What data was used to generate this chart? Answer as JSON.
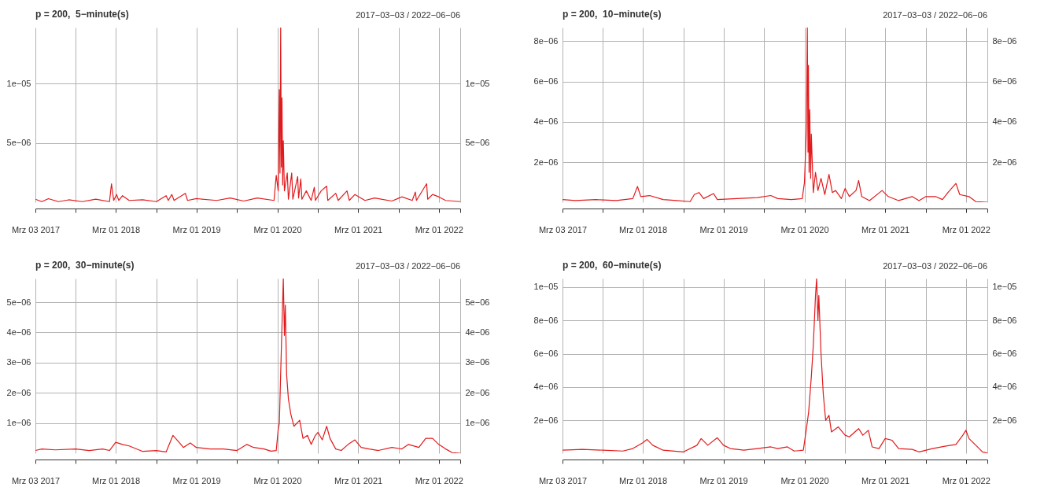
{
  "chart_data": [
    {
      "type": "line",
      "title": "p = 200,  5−minute(s)",
      "subtitle": "2017−03−03 / 2022−06−06",
      "color": "#e31a1c",
      "grid": true,
      "x": [
        "2017-03-03",
        "2017-04-01",
        "2017-05-01",
        "2017-06-15",
        "2017-08-01",
        "2017-10-01",
        "2017-12-01",
        "2018-02-01",
        "2018-02-10",
        "2018-02-20",
        "2018-03-05",
        "2018-03-15",
        "2018-04-01",
        "2018-05-01",
        "2018-07-01",
        "2018-09-01",
        "2018-10-15",
        "2018-10-25",
        "2018-11-10",
        "2018-11-20",
        "2019-01-10",
        "2019-01-20",
        "2019-03-01",
        "2019-06-01",
        "2019-08-01",
        "2019-10-01",
        "2019-12-01",
        "2020-02-15",
        "2020-02-25",
        "2020-03-05",
        "2020-03-10",
        "2020-03-13",
        "2020-03-16",
        "2020-03-19",
        "2020-03-22",
        "2020-03-25",
        "2020-03-28",
        "2020-04-02",
        "2020-04-15",
        "2020-04-20",
        "2020-05-05",
        "2020-05-10",
        "2020-06-01",
        "2020-06-05",
        "2020-06-15",
        "2020-06-20",
        "2020-07-10",
        "2020-08-01",
        "2020-08-15",
        "2020-08-20",
        "2020-09-15",
        "2020-10-10",
        "2020-10-15",
        "2020-11-20",
        "2020-12-01",
        "2021-01-10",
        "2021-01-20",
        "2021-02-15",
        "2021-04-01",
        "2021-05-15",
        "2021-08-01",
        "2021-09-15",
        "2021-11-01",
        "2021-11-15",
        "2021-11-20",
        "2022-01-05",
        "2022-01-10",
        "2022-02-01",
        "2022-03-01",
        "2022-04-01",
        "2022-06-06"
      ],
      "values": [
        3e-07,
        1e-07,
        3.5e-07,
        1e-07,
        2.5e-07,
        1e-07,
        3e-07,
        1e-07,
        1.6e-06,
        2e-07,
        7e-07,
        2e-07,
        6e-07,
        2e-07,
        2.5e-07,
        1e-07,
        6e-07,
        2e-07,
        7e-07,
        2e-07,
        8e-07,
        2e-07,
        3.5e-07,
        2e-07,
        4e-07,
        1.5e-07,
        4e-07,
        2e-07,
        2.3e-06,
        1e-06,
        9.5e-06,
        2.5e-06,
        1.47e-05,
        3e-06,
        8.8e-06,
        1.5e-06,
        5.2e-06,
        1e-06,
        2.5e-06,
        3e-07,
        2.5e-06,
        3e-07,
        2.2e-06,
        4e-07,
        2e-06,
        3e-07,
        1e-06,
        2e-07,
        1.3e-06,
        2e-07,
        1e-06,
        1.4e-06,
        2e-07,
        8e-07,
        2e-07,
        1e-06,
        2e-07,
        7e-07,
        2e-07,
        4e-07,
        1.5e-07,
        5e-07,
        2e-07,
        9e-07,
        2e-07,
        1.6e-06,
        3e-07,
        7e-07,
        5e-07,
        2e-07,
        1e-07
      ],
      "xlim": [
        "2017-03-03",
        "2022-06-06"
      ],
      "xticks": [
        {
          "value": "2017-03-03",
          "label": "Mrz 03 2017"
        },
        {
          "value": "2017-09-01",
          "label": null
        },
        {
          "value": "2018-03-01",
          "label": "Mrz 01 2018"
        },
        {
          "value": "2018-09-01",
          "label": null
        },
        {
          "value": "2019-03-01",
          "label": "Mrz 01 2019"
        },
        {
          "value": "2019-09-01",
          "label": null
        },
        {
          "value": "2020-03-01",
          "label": "Mrz 01 2020"
        },
        {
          "value": "2020-09-01",
          "label": null
        },
        {
          "value": "2021-03-01",
          "label": "Mrz 01 2021"
        },
        {
          "value": "2021-09-01",
          "label": null
        },
        {
          "value": "2022-03-01",
          "label": "Mrz 01 2022"
        },
        {
          "value": "2022-06-06",
          "label": null
        }
      ],
      "ylim": [
        5e-08,
        1.47e-05
      ],
      "yticks": [
        {
          "value": 5e-06,
          "label": "5e−06"
        },
        {
          "value": 1e-05,
          "label": "1e−05"
        }
      ],
      "y2lim": [
        5e-08,
        1.47e-05
      ],
      "y2ticks": [
        {
          "value": 5e-06,
          "label": "5e−06"
        },
        {
          "value": 1e-05,
          "label": "1e−05"
        }
      ]
    },
    {
      "type": "line",
      "title": "p = 200,  10−minute(s)",
      "subtitle": "2017−03−03 / 2022−06−06",
      "color": "#e31a1c",
      "grid": true,
      "x": [
        "2017-03-03",
        "2017-05-01",
        "2017-08-01",
        "2017-11-01",
        "2018-01-15",
        "2018-02-05",
        "2018-02-20",
        "2018-04-01",
        "2018-06-01",
        "2018-08-01",
        "2018-10-01",
        "2018-10-20",
        "2018-11-10",
        "2018-12-01",
        "2019-01-15",
        "2019-02-01",
        "2019-05-01",
        "2019-08-01",
        "2019-10-01",
        "2019-11-01",
        "2020-01-01",
        "2020-02-20",
        "2020-03-01",
        "2020-03-10",
        "2020-03-14",
        "2020-03-17",
        "2020-03-19",
        "2020-03-22",
        "2020-03-25",
        "2020-03-29",
        "2020-04-01",
        "2020-04-10",
        "2020-04-20",
        "2020-05-01",
        "2020-05-15",
        "2020-06-01",
        "2020-06-20",
        "2020-07-05",
        "2020-07-20",
        "2020-08-15",
        "2020-09-01",
        "2020-09-20",
        "2020-10-20",
        "2020-11-01",
        "2020-11-15",
        "2020-12-20",
        "2021-02-15",
        "2021-03-15",
        "2021-05-01",
        "2021-07-01",
        "2021-08-01",
        "2021-09-01",
        "2021-10-15",
        "2021-11-15",
        "2021-12-10",
        "2022-01-15",
        "2022-02-01",
        "2022-03-15",
        "2022-04-15",
        "2022-06-06"
      ],
      "values": [
        1.5e-07,
        1e-07,
        1.5e-07,
        1e-07,
        2e-07,
        8e-07,
        3e-07,
        3.5e-07,
        1.5e-07,
        1e-07,
        5e-08,
        4e-07,
        5e-07,
        2e-07,
        4.5e-07,
        1.5e-07,
        2e-07,
        2.5e-07,
        3.5e-07,
        2e-07,
        1.5e-07,
        2e-07,
        1e-06,
        3.7e-06,
        8.67e-06,
        2.5e-06,
        6.8e-06,
        1.5e-06,
        4.6e-06,
        1.2e-06,
        3.4e-06,
        5e-07,
        1.5e-06,
        6e-07,
        1.2e-06,
        4e-07,
        1.4e-06,
        5e-07,
        6e-07,
        2e-07,
        7e-07,
        3e-07,
        6e-07,
        1.1e-06,
        3e-07,
        1e-07,
        6e-07,
        3e-07,
        1e-07,
        3e-07,
        1e-07,
        3e-07,
        3e-07,
        1.5e-07,
        5e-07,
        9.5e-07,
        4e-07,
        3e-07,
        5e-08,
        2e-08
      ],
      "xlim": [
        "2017-03-03",
        "2022-06-06"
      ],
      "xticks": [
        {
          "value": "2017-03-03",
          "label": "Mrz 03 2017"
        },
        {
          "value": "2017-09-01",
          "label": null
        },
        {
          "value": "2018-03-01",
          "label": "Mrz 01 2018"
        },
        {
          "value": "2018-09-01",
          "label": null
        },
        {
          "value": "2019-03-01",
          "label": "Mrz 01 2019"
        },
        {
          "value": "2019-09-01",
          "label": null
        },
        {
          "value": "2020-03-01",
          "label": "Mrz 01 2020"
        },
        {
          "value": "2020-09-01",
          "label": null
        },
        {
          "value": "2021-03-01",
          "label": "Mrz 01 2021"
        },
        {
          "value": "2021-09-01",
          "label": null
        },
        {
          "value": "2022-03-01",
          "label": "Mrz 01 2022"
        },
        {
          "value": "2022-06-06",
          "label": null
        }
      ],
      "ylim": [
        2e-08,
        8.67e-06
      ],
      "yticks": [
        {
          "value": 2e-06,
          "label": "2e−06"
        },
        {
          "value": 4e-06,
          "label": "4e−06"
        },
        {
          "value": 6e-06,
          "label": "6e−06"
        },
        {
          "value": 8e-06,
          "label": "8e−06"
        }
      ],
      "y2lim": [
        2e-08,
        8.67e-06
      ],
      "y2ticks": [
        {
          "value": 2e-06,
          "label": "2e−06"
        },
        {
          "value": 4e-06,
          "label": "4e−06"
        },
        {
          "value": 6e-06,
          "label": "6e−06"
        },
        {
          "value": 8e-06,
          "label": "8e−06"
        }
      ]
    },
    {
      "type": "line",
      "title": "p = 200,  30−minute(s)",
      "subtitle": "2017−03−03 / 2022−06−06",
      "color": "#e31a1c",
      "grid": true,
      "x": [
        "2017-03-03",
        "2017-04-01",
        "2017-06-01",
        "2017-09-01",
        "2017-11-01",
        "2018-01-01",
        "2018-02-01",
        "2018-03-01",
        "2018-04-01",
        "2018-05-01",
        "2018-07-01",
        "2018-09-01",
        "2018-10-15",
        "2018-11-15",
        "2018-12-15",
        "2019-01-01",
        "2019-02-01",
        "2019-03-01",
        "2019-05-01",
        "2019-07-01",
        "2019-09-01",
        "2019-10-15",
        "2019-11-15",
        "2020-01-01",
        "2020-02-01",
        "2020-02-25",
        "2020-03-05",
        "2020-03-10",
        "2020-03-20",
        "2020-03-28",
        "2020-04-02",
        "2020-04-06",
        "2020-04-12",
        "2020-04-20",
        "2020-05-01",
        "2020-05-15",
        "2020-06-10",
        "2020-06-25",
        "2020-07-15",
        "2020-08-01",
        "2020-08-20",
        "2020-09-01",
        "2020-09-20",
        "2020-10-10",
        "2020-10-25",
        "2020-11-20",
        "2020-12-15",
        "2021-01-15",
        "2021-02-15",
        "2021-03-15",
        "2021-04-20",
        "2021-06-01",
        "2021-08-01",
        "2021-09-15",
        "2021-10-15",
        "2021-12-01",
        "2022-01-01",
        "2022-02-01",
        "2022-03-01",
        "2022-04-01",
        "2022-05-01",
        "2022-06-06"
      ],
      "values": [
        1e-07,
        1.5e-07,
        1.2e-07,
        1.5e-07,
        1e-07,
        1.5e-07,
        1e-07,
        3.7e-07,
        3e-07,
        2.5e-07,
        7e-08,
        1e-07,
        5e-08,
        6e-07,
        3.5e-07,
        2e-07,
        3.5e-07,
        2e-07,
        1.5e-07,
        1.5e-07,
        1e-07,
        3e-07,
        2e-07,
        1.5e-07,
        8e-08,
        1e-07,
        8e-07,
        1e-06,
        3.7e-06,
        5.78e-06,
        3.9e-06,
        4.9e-06,
        2.6e-06,
        1.8e-06,
        1.3e-06,
        9e-07,
        1.1e-06,
        5e-07,
        6e-07,
        3e-07,
        6e-07,
        7e-07,
        4.5e-07,
        9e-07,
        5e-07,
        1.5e-07,
        1e-07,
        3e-07,
        4.5e-07,
        2e-07,
        1.5e-07,
        1e-07,
        2e-07,
        1.5e-07,
        3e-07,
        2e-07,
        5e-07,
        5e-07,
        3e-07,
        1.5e-07,
        3e-08,
        1e-08
      ],
      "xlim": [
        "2017-03-03",
        "2022-06-06"
      ],
      "xticks": [
        {
          "value": "2017-03-03",
          "label": "Mrz 03 2017"
        },
        {
          "value": "2017-09-01",
          "label": null
        },
        {
          "value": "2018-03-01",
          "label": "Mrz 01 2018"
        },
        {
          "value": "2018-09-01",
          "label": null
        },
        {
          "value": "2019-03-01",
          "label": "Mrz 01 2019"
        },
        {
          "value": "2019-09-01",
          "label": null
        },
        {
          "value": "2020-03-01",
          "label": "Mrz 01 2020"
        },
        {
          "value": "2020-09-01",
          "label": null
        },
        {
          "value": "2021-03-01",
          "label": "Mrz 01 2021"
        },
        {
          "value": "2021-09-01",
          "label": null
        },
        {
          "value": "2022-03-01",
          "label": "Mrz 01 2022"
        },
        {
          "value": "2022-06-06",
          "label": null
        }
      ],
      "ylim": [
        1e-08,
        5.78e-06
      ],
      "yticks": [
        {
          "value": 1e-06,
          "label": "1e−06"
        },
        {
          "value": 2e-06,
          "label": "2e−06"
        },
        {
          "value": 3e-06,
          "label": "3e−06"
        },
        {
          "value": 4e-06,
          "label": "4e−06"
        },
        {
          "value": 5e-06,
          "label": "5e−06"
        }
      ],
      "y2lim": [
        1e-08,
        5.78e-06
      ],
      "y2ticks": [
        {
          "value": 1e-06,
          "label": "1e−06"
        },
        {
          "value": 2e-06,
          "label": "2e−06"
        },
        {
          "value": 3e-06,
          "label": "3e−06"
        },
        {
          "value": 4e-06,
          "label": "4e−06"
        },
        {
          "value": 5e-06,
          "label": "5e−06"
        }
      ]
    },
    {
      "type": "line",
      "title": "p = 200,  60−minute(s)",
      "subtitle": "2017−03−03 / 2022−06−06",
      "color": "#e31a1c",
      "grid": true,
      "x": [
        "2017-03-03",
        "2017-06-01",
        "2017-09-01",
        "2017-12-01",
        "2018-01-15",
        "2018-03-01",
        "2018-03-20",
        "2018-04-15",
        "2018-06-01",
        "2018-09-01",
        "2018-11-01",
        "2018-11-20",
        "2018-12-20",
        "2019-02-01",
        "2019-03-01",
        "2019-04-01",
        "2019-06-01",
        "2019-08-01",
        "2019-10-01",
        "2019-11-01",
        "2019-12-15",
        "2020-01-15",
        "2020-02-25",
        "2020-03-10",
        "2020-03-20",
        "2020-04-01",
        "2020-04-10",
        "2020-04-20",
        "2020-04-25",
        "2020-05-01",
        "2020-05-05",
        "2020-05-15",
        "2020-05-25",
        "2020-06-05",
        "2020-06-20",
        "2020-07-01",
        "2020-08-01",
        "2020-09-01",
        "2020-09-20",
        "2020-11-01",
        "2020-11-20",
        "2020-12-15",
        "2021-01-01",
        "2021-02-01",
        "2021-03-01",
        "2021-04-01",
        "2021-05-01",
        "2021-07-01",
        "2021-08-01",
        "2021-10-01",
        "2021-12-01",
        "2022-01-15",
        "2022-02-15",
        "2022-03-01",
        "2022-03-15",
        "2022-04-15",
        "2022-05-15",
        "2022-06-06"
      ],
      "values": [
        2e-07,
        2.5e-07,
        2e-07,
        1.5e-07,
        3e-07,
        6.5e-07,
        8.5e-07,
        5e-07,
        2e-07,
        1e-07,
        5e-07,
        9e-07,
        5e-07,
        9.5e-07,
        5e-07,
        3e-07,
        2e-07,
        3e-07,
        4e-07,
        3e-07,
        4e-07,
        1.5e-07,
        2e-07,
        1.5e-06,
        2.5e-06,
        4.6e-06,
        6.5e-06,
        9.5e-06,
        1.052e-05,
        8e-06,
        9.5e-06,
        6e-06,
        3.6e-06,
        2e-06,
        2.3e-06,
        1.3e-06,
        1.6e-06,
        1.1e-06,
        1e-06,
        1.5e-06,
        1.1e-06,
        1.4e-06,
        4e-07,
        3e-07,
        9e-07,
        8e-07,
        3e-07,
        2.5e-07,
        1e-07,
        3e-07,
        4.5e-07,
        5.5e-07,
        1.1e-06,
        1.4e-06,
        9e-07,
        5e-07,
        1e-07,
        3e-08
      ],
      "xlim": [
        "2017-03-03",
        "2022-06-06"
      ],
      "xticks": [
        {
          "value": "2017-03-03",
          "label": "Mrz 03 2017"
        },
        {
          "value": "2017-09-01",
          "label": null
        },
        {
          "value": "2018-03-01",
          "label": "Mrz 01 2018"
        },
        {
          "value": "2018-09-01",
          "label": null
        },
        {
          "value": "2019-03-01",
          "label": "Mrz 01 2019"
        },
        {
          "value": "2019-09-01",
          "label": null
        },
        {
          "value": "2020-03-01",
          "label": "Mrz 01 2020"
        },
        {
          "value": "2020-09-01",
          "label": null
        },
        {
          "value": "2021-03-01",
          "label": "Mrz 01 2021"
        },
        {
          "value": "2021-09-01",
          "label": null
        },
        {
          "value": "2022-03-01",
          "label": "Mrz 01 2022"
        },
        {
          "value": "2022-06-06",
          "label": null
        }
      ],
      "ylim": [
        2e-08,
        1.052e-05
      ],
      "yticks": [
        {
          "value": 2e-06,
          "label": "2e−06"
        },
        {
          "value": 4e-06,
          "label": "4e−06"
        },
        {
          "value": 6e-06,
          "label": "6e−06"
        },
        {
          "value": 8e-06,
          "label": "8e−06"
        },
        {
          "value": 1e-05,
          "label": "1e−05"
        }
      ],
      "y2lim": [
        2e-08,
        1.052e-05
      ],
      "y2ticks": [
        {
          "value": 2e-06,
          "label": "2e−06"
        },
        {
          "value": 4e-06,
          "label": "4e−06"
        },
        {
          "value": 6e-06,
          "label": "6e−06"
        },
        {
          "value": 8e-06,
          "label": "8e−06"
        },
        {
          "value": 1e-05,
          "label": "1e−05"
        }
      ]
    }
  ]
}
